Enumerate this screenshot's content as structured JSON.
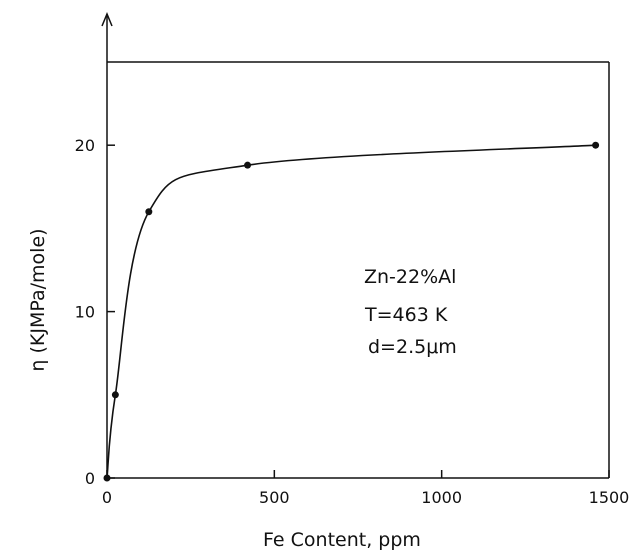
{
  "chart_data": {
    "type": "scatter",
    "title": "",
    "xlabel": "Fe Content, ppm",
    "ylabel": "η (KJMPa/mole)",
    "xlim": [
      0,
      1500
    ],
    "ylim": [
      0,
      25
    ],
    "x_ticks": [
      0,
      500,
      1000,
      1500
    ],
    "x_tick_labels": [
      "0",
      "500",
      "1000",
      "1500"
    ],
    "y_ticks": [
      0,
      10,
      20
    ],
    "y_tick_labels": [
      "0",
      "10",
      "20"
    ],
    "grid": false,
    "legend": "none",
    "series": [
      {
        "points": [
          {
            "x": 0,
            "y": 0
          },
          {
            "x": 25,
            "y": 5
          },
          {
            "x": 125,
            "y": 16
          },
          {
            "x": 420,
            "y": 18.8
          },
          {
            "x": 1460,
            "y": 20
          }
        ],
        "fit_curve": true
      }
    ],
    "annotations": [
      "Zn-22%Al",
      "T=463 K",
      "d=2.5μm"
    ]
  }
}
